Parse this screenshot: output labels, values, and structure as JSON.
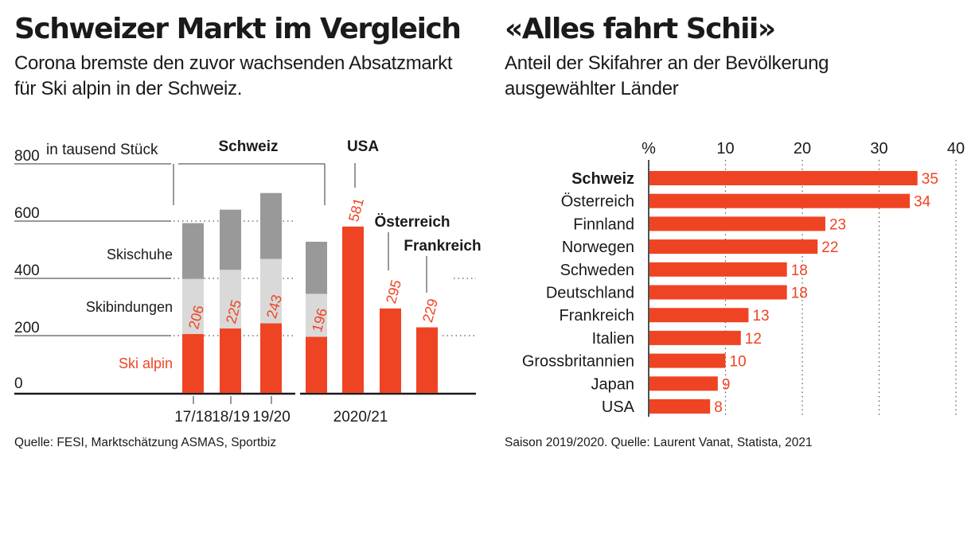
{
  "left": {
    "title": "Schweizer Markt im Vergleich",
    "subtitle_line1": "Corona bremste den zuvor wachsenden Absatzmarkt",
    "subtitle_line2": "für Ski alpin in der Schweiz.",
    "source": "Quelle: FESI, Marktschätzung ASMAS, Sportbiz"
  },
  "right": {
    "title": "«Alles fahrt Schii»",
    "subtitle_line1": "Anteil der Skifahrer an der Bevölkerung",
    "subtitle_line2": "ausgewählter Länder",
    "source": "Saison 2019/2020. Quelle: Laurent Vanat, Statista, 2021"
  },
  "colors": {
    "ski": "#ef4423",
    "bindung": "#d9d9d9",
    "schuhe": "#999999",
    "axis": "#1a1a1a"
  },
  "chart_data": [
    {
      "type": "bar",
      "stacked": true,
      "unit": "in tausend Stück",
      "ylim": [
        0,
        800
      ],
      "yticks": [
        0,
        200,
        400,
        600,
        800
      ],
      "series_labels": {
        "ski": "Ski alpin",
        "bindung": "Skibindungen",
        "schuhe": "Skischuhe"
      },
      "group_labels": {
        "schweiz": "Schweiz",
        "usa": "USA",
        "oesterreich": "Österreich",
        "frankreich": "Frankreich"
      },
      "x_labels": [
        "17/18",
        "18/19",
        "19/20",
        "2020/21"
      ],
      "bars": [
        {
          "category": "17/18",
          "country": "Schweiz",
          "ski": 206,
          "bindung": 192,
          "schuhe": 195,
          "label": "206"
        },
        {
          "category": "18/19",
          "country": "Schweiz",
          "ski": 225,
          "bindung": 205,
          "schuhe": 210,
          "label": "225"
        },
        {
          "category": "19/20",
          "country": "Schweiz",
          "ski": 243,
          "bindung": 225,
          "schuhe": 230,
          "label": "243"
        },
        {
          "category": "2020/21",
          "country": "Schweiz",
          "ski": 196,
          "bindung": 150,
          "schuhe": 182,
          "label": "196"
        },
        {
          "category": "2020/21",
          "country": "USA",
          "ski": 581,
          "bindung": 0,
          "schuhe": 0,
          "label": "581"
        },
        {
          "category": "2020/21",
          "country": "Österreich",
          "ski": 295,
          "bindung": 0,
          "schuhe": 0,
          "label": "295"
        },
        {
          "category": "2020/21",
          "country": "Frankreich",
          "ski": 229,
          "bindung": 0,
          "schuhe": 0,
          "label": "229"
        }
      ]
    },
    {
      "type": "bar",
      "orientation": "horizontal",
      "xlim": [
        0,
        40
      ],
      "xticks": [
        "%",
        "10",
        "20",
        "30",
        "40"
      ],
      "categories": [
        "Schweiz",
        "Österreich",
        "Finnland",
        "Norwegen",
        "Schweden",
        "Deutschland",
        "Frankreich",
        "Italien",
        "Grossbritannien",
        "Japan",
        "USA"
      ],
      "values": [
        35,
        34,
        23,
        22,
        18,
        18,
        13,
        12,
        10,
        9,
        8
      ],
      "highlight": "Schweiz"
    }
  ]
}
